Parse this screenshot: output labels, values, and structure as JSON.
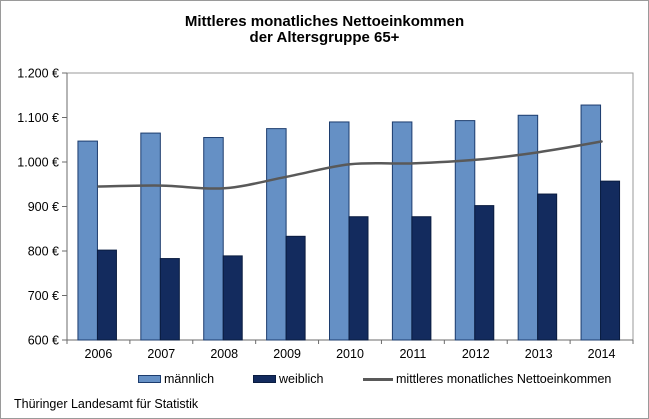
{
  "window": {
    "background": "#ffffff",
    "frame_border_color": "#9a9a9a"
  },
  "title": {
    "line1": "Mittleres monatliches Nettoeinkommen",
    "line2": "der Altersgruppe 65+"
  },
  "source_note": "Thüringer Landesamt für Statistik",
  "chart_data": {
    "type": "bar",
    "subtype": "clustered-bars-with-smoothed-line-overlay",
    "title": "Mittleres monatliches Nettoeinkommen der Altersgruppe 65+",
    "unit": "€",
    "categories": [
      "2006",
      "2007",
      "2008",
      "2009",
      "2010",
      "2011",
      "2012",
      "2013",
      "2014"
    ],
    "series": [
      {
        "name": "männlich",
        "type": "bar",
        "color": "#6590c5",
        "border_color": "#1c3c6e",
        "values": [
          1047,
          1065,
          1055,
          1075,
          1090,
          1090,
          1093,
          1105,
          1128
        ]
      },
      {
        "name": "weiblich",
        "type": "bar",
        "color": "#132b5e",
        "border_color": "#0a1c40",
        "values": [
          802,
          783,
          789,
          833,
          877,
          877,
          902,
          928,
          957
        ]
      },
      {
        "name": "mittleres monatliches Nettoeinkommen",
        "type": "line",
        "color": "#595959",
        "values": [
          945,
          947,
          941,
          967,
          995,
          997,
          1005,
          1022,
          1046
        ]
      }
    ],
    "y_axis": {
      "min": 600,
      "max": 1200,
      "step": 100,
      "tick_labels": [
        "600 €",
        "700 €",
        "800 €",
        "900 €",
        "1.000 €",
        "1.100 €",
        "1.200 €"
      ]
    },
    "x_axis": {
      "tick_labels": [
        "2006",
        "2007",
        "2008",
        "2009",
        "2010",
        "2011",
        "2012",
        "2013",
        "2014"
      ]
    },
    "gridlines": false,
    "legend_position": "bottom",
    "axis_color": "#6b6b6b",
    "frame_color": "#9a9a9a"
  },
  "legend_items": [
    {
      "label": "männlich"
    },
    {
      "label": "weiblich"
    },
    {
      "label": "mittleres monatliches Nettoeinkommen"
    }
  ]
}
